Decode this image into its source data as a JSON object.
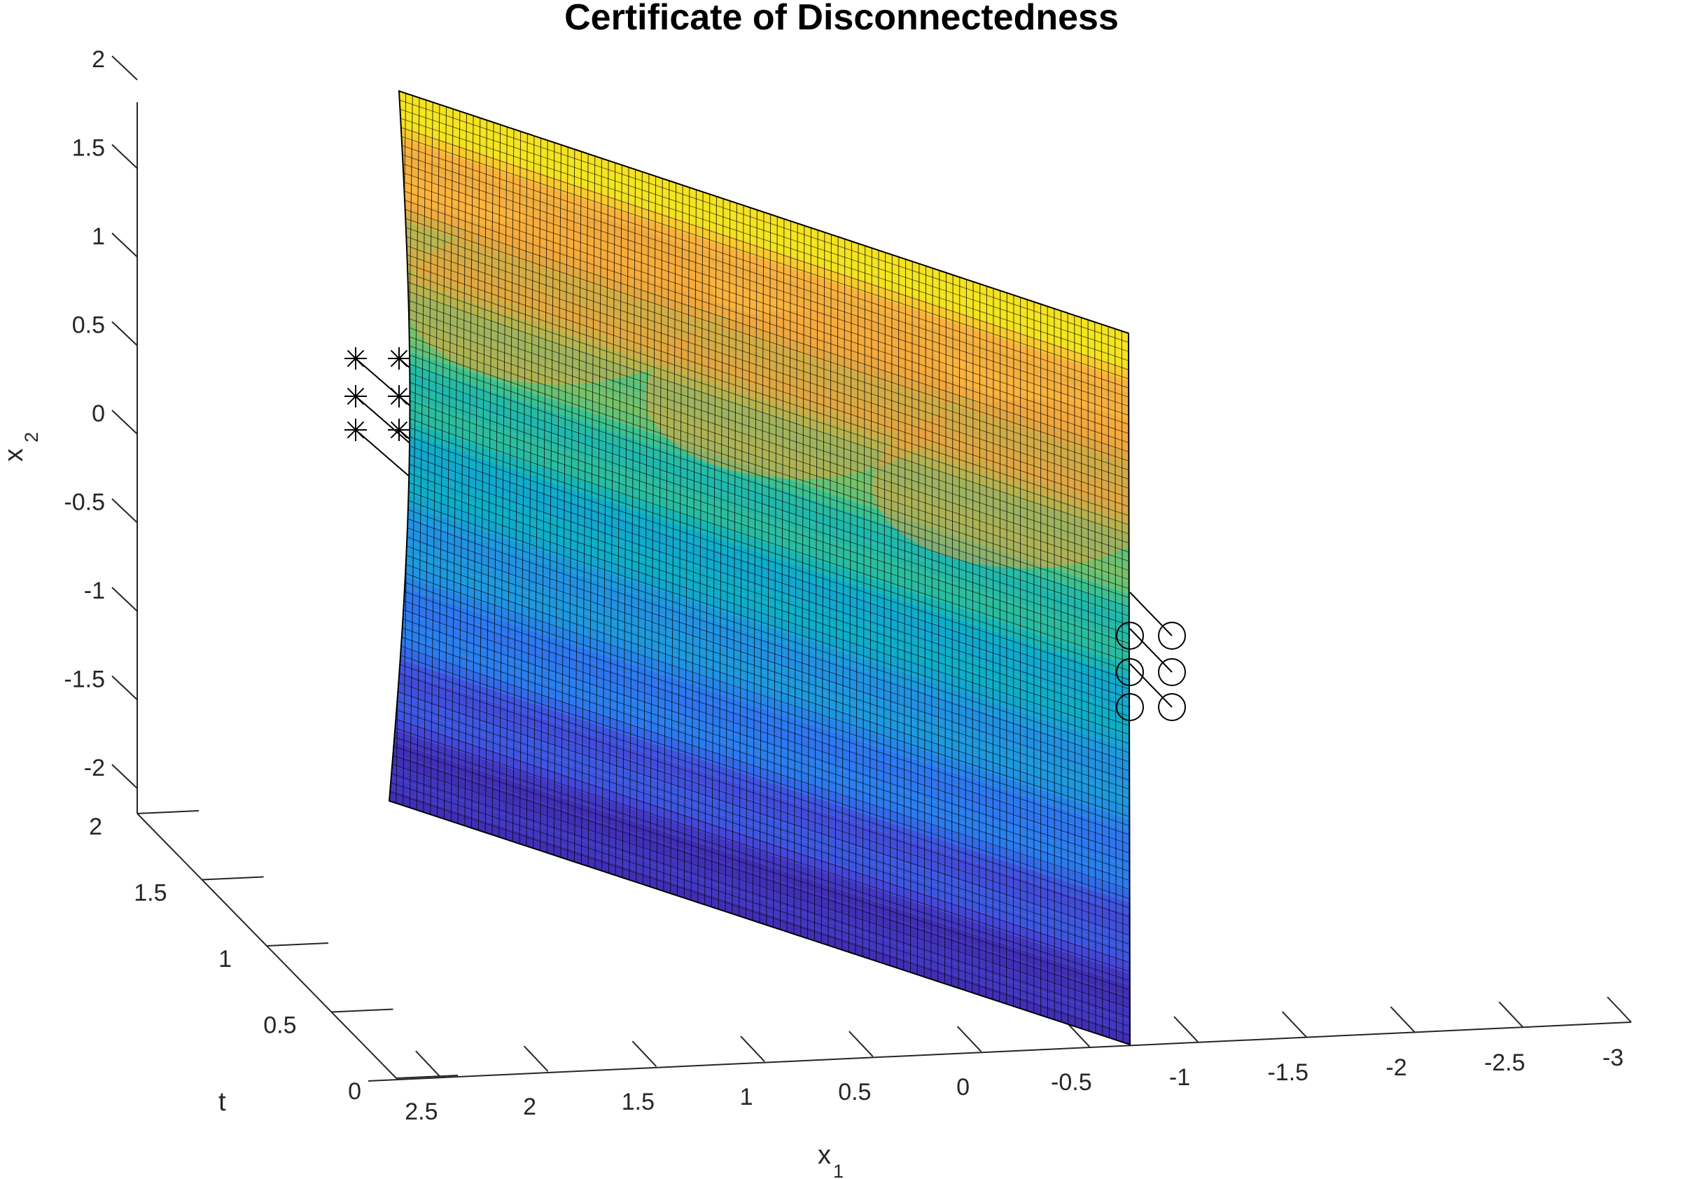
{
  "chart_data": {
    "type": "surface",
    "title": "Certificate of Disconnectedness",
    "xlabel": {
      "base": "x",
      "sub": "1"
    },
    "ylabel": {
      "base": "t",
      "sub": ""
    },
    "zlabel": {
      "base": "x",
      "sub": "2"
    },
    "x_ticks": [
      "2.5",
      "2",
      "1.5",
      "1",
      "0.5",
      "0",
      "-0.5",
      "-1",
      "-1.5",
      "-2",
      "-2.5",
      "-3"
    ],
    "x_tick_values": [
      2.5,
      2,
      1.5,
      1,
      0.5,
      0,
      -0.5,
      -1,
      -1.5,
      -2,
      -2.5,
      -3
    ],
    "t_ticks": [
      "0",
      "0.5",
      "1",
      "1.5",
      "2"
    ],
    "t_tick_values": [
      0,
      0.5,
      1,
      1.5,
      2
    ],
    "z_ticks": [
      "-2",
      "-1.5",
      "-1",
      "-0.5",
      "0",
      "0.5",
      "1",
      "1.5",
      "2"
    ],
    "z_tick_values": [
      -2,
      -1.5,
      -1,
      -0.5,
      0,
      0.5,
      1,
      1.5,
      2
    ],
    "xlim": [
      -3,
      2.7
    ],
    "tlim": [
      0,
      2
    ],
    "zlim": [
      -2,
      2
    ],
    "grid": false,
    "colormap": "parula",
    "surface": {
      "description_free": true,
      "t_range": [
        0,
        2
      ],
      "x2_range": [
        -2,
        2
      ],
      "x1_at_t0": -0.45,
      "x1_at_t2": 1.95
    },
    "trajectory_groups": [
      {
        "marker": "asterisk",
        "start_points": [
          {
            "x1": 2.0,
            "t": 2.0,
            "x2": 0.5
          },
          {
            "x1": 2.0,
            "t": 2.0,
            "x2": 0.25
          },
          {
            "x1": 2.0,
            "t": 2.0,
            "x2": 0.0
          },
          {
            "x1": 1.8,
            "t": 2.0,
            "x2": 0.5
          },
          {
            "x1": 1.8,
            "t": 2.0,
            "x2": 0.25
          },
          {
            "x1": 1.8,
            "t": 2.0,
            "x2": 0.0
          }
        ]
      },
      {
        "marker": "circle",
        "start_points": [
          {
            "x1": -0.6,
            "t": 0.0,
            "x2": -1.2
          },
          {
            "x1": -0.6,
            "t": 0.0,
            "x2": -1.45
          },
          {
            "x1": -0.6,
            "t": 0.0,
            "x2": -1.7
          },
          {
            "x1": -0.85,
            "t": 0.0,
            "x2": -1.2
          },
          {
            "x1": -0.85,
            "t": 0.0,
            "x2": -1.45
          },
          {
            "x1": -0.85,
            "t": 0.0,
            "x2": -1.7
          }
        ]
      }
    ]
  }
}
